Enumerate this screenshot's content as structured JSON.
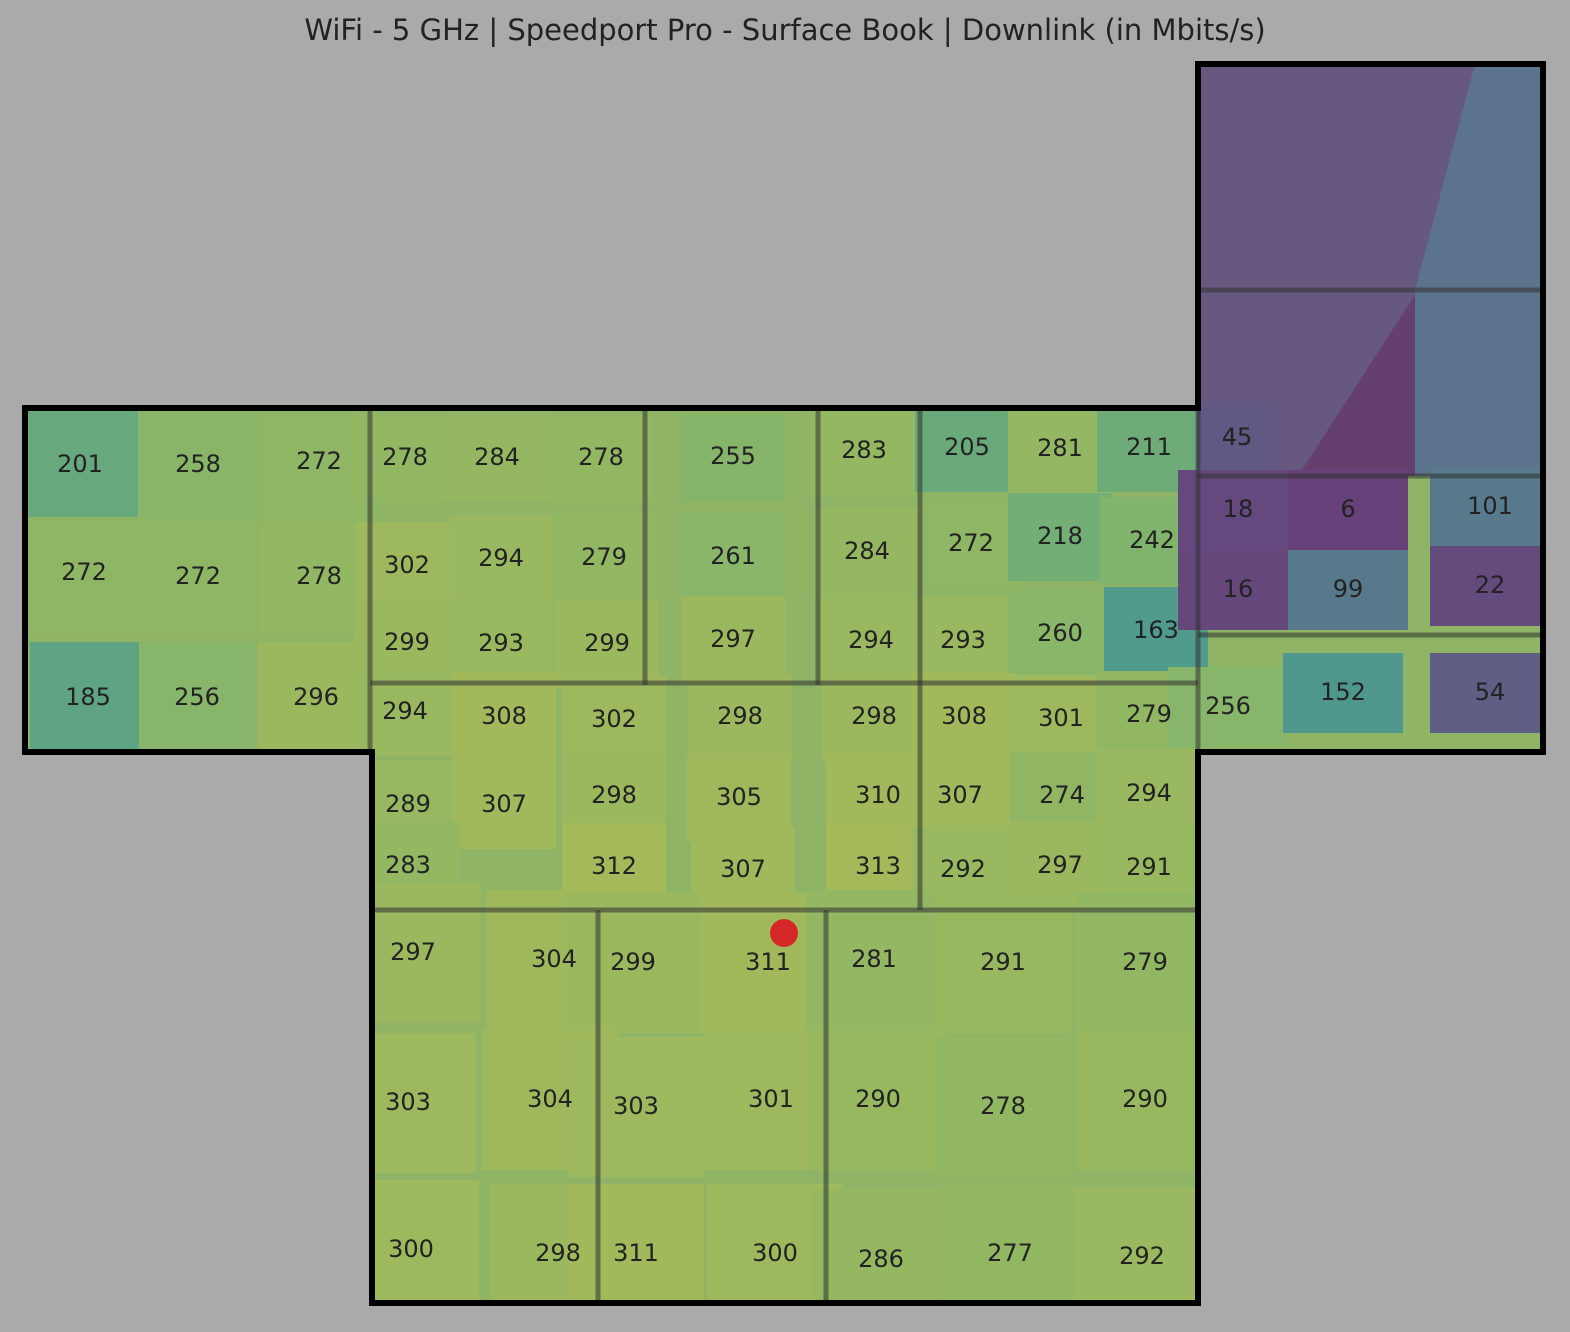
{
  "chart_data": {
    "type": "heatmap",
    "title": "WiFi - 5 GHz | Speedport Pro - Surface Book | Downlink (in Mbits/s)",
    "colormap": [
      "#67417a",
      "#5b708c",
      "#4e9a8c",
      "#7db46e",
      "#a3b95a"
    ],
    "values": [
      201,
      258,
      272,
      272,
      272,
      278,
      185,
      256,
      296,
      278,
      284,
      278,
      255,
      283,
      205,
      281,
      211,
      302,
      294,
      279,
      261,
      284,
      272,
      218,
      242,
      299,
      293,
      299,
      297,
      294,
      293,
      260,
      163,
      294,
      308,
      302,
      298,
      298,
      308,
      301,
      279,
      289,
      307,
      298,
      305,
      310,
      307,
      274,
      294,
      283,
      312,
      307,
      313,
      292,
      297,
      291,
      297,
      304,
      299,
      311,
      281,
      291,
      279,
      303,
      304,
      303,
      301,
      290,
      278,
      290,
      300,
      298,
      311,
      300,
      286,
      277,
      292,
      45,
      18,
      6,
      101,
      16,
      99,
      22,
      256,
      152,
      54
    ]
  }
}
